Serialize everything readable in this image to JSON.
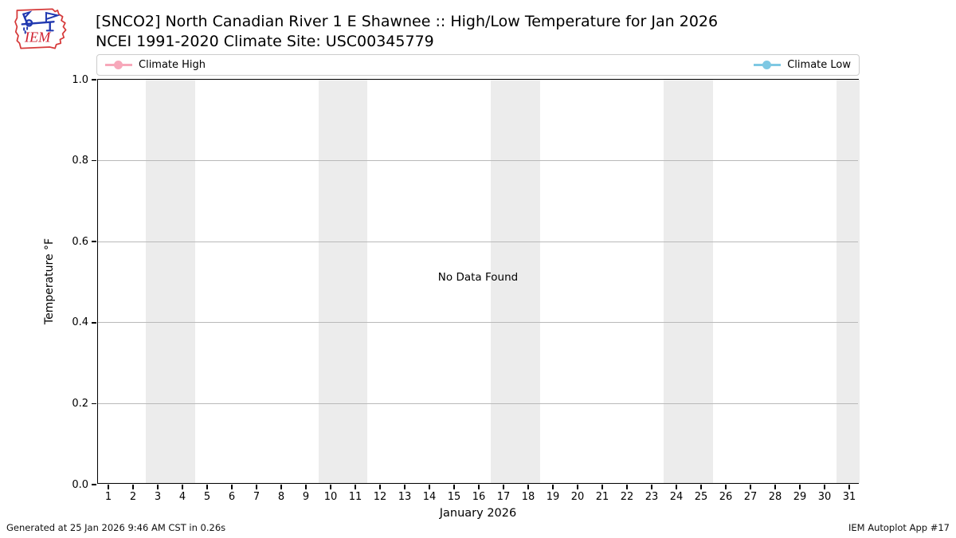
{
  "header": {
    "title_line1": "[SNCO2] North Canadian River 1 E Shawnee :: High/Low Temperature for Jan 2026",
    "title_line2": "NCEI 1991-2020 Climate Site: USC00345779",
    "logo_text": "IEM",
    "logo_colors": {
      "outline": "#d63a3a",
      "instrument": "#2038b0",
      "text": "#cf2030"
    }
  },
  "legend": {
    "entries": [
      {
        "label": "Climate High",
        "color": "#f7a8ba"
      },
      {
        "label": "Climate Low",
        "color": "#7ec8e3"
      }
    ]
  },
  "chart_data": {
    "type": "line",
    "title": "[SNCO2] North Canadian River 1 E Shawnee :: High/Low Temperature for Jan 2026",
    "subtitle": "NCEI 1991-2020 Climate Site: USC00345779",
    "xlabel": "January 2026",
    "ylabel": "Temperature °F",
    "no_data_text": "No Data Found",
    "x_ticks": [
      1,
      2,
      3,
      4,
      5,
      6,
      7,
      8,
      9,
      10,
      11,
      12,
      13,
      14,
      15,
      16,
      17,
      18,
      19,
      20,
      21,
      22,
      23,
      24,
      25,
      26,
      27,
      28,
      29,
      30,
      31
    ],
    "y_ticks": [
      "0.0",
      "0.2",
      "0.4",
      "0.6",
      "0.8",
      "1.0"
    ],
    "xlim": [
      0.58,
      31.42
    ],
    "ylim": [
      0,
      1
    ],
    "grid": true,
    "weekend_bands": [
      [
        2.5,
        4.5
      ],
      [
        9.5,
        11.5
      ],
      [
        16.5,
        18.5
      ],
      [
        23.5,
        25.5
      ],
      [
        30.5,
        31.42
      ]
    ],
    "band_color": "#ececec",
    "legend_position": "top-full-width",
    "series": [
      {
        "name": "Climate High",
        "color": "#f7a8ba",
        "values": []
      },
      {
        "name": "Climate Low",
        "color": "#7ec8e3",
        "values": []
      }
    ]
  },
  "footer": {
    "generated": "Generated at 25 Jan 2026 9:46 AM CST in 0.26s",
    "app": "IEM Autoplot App #17"
  }
}
